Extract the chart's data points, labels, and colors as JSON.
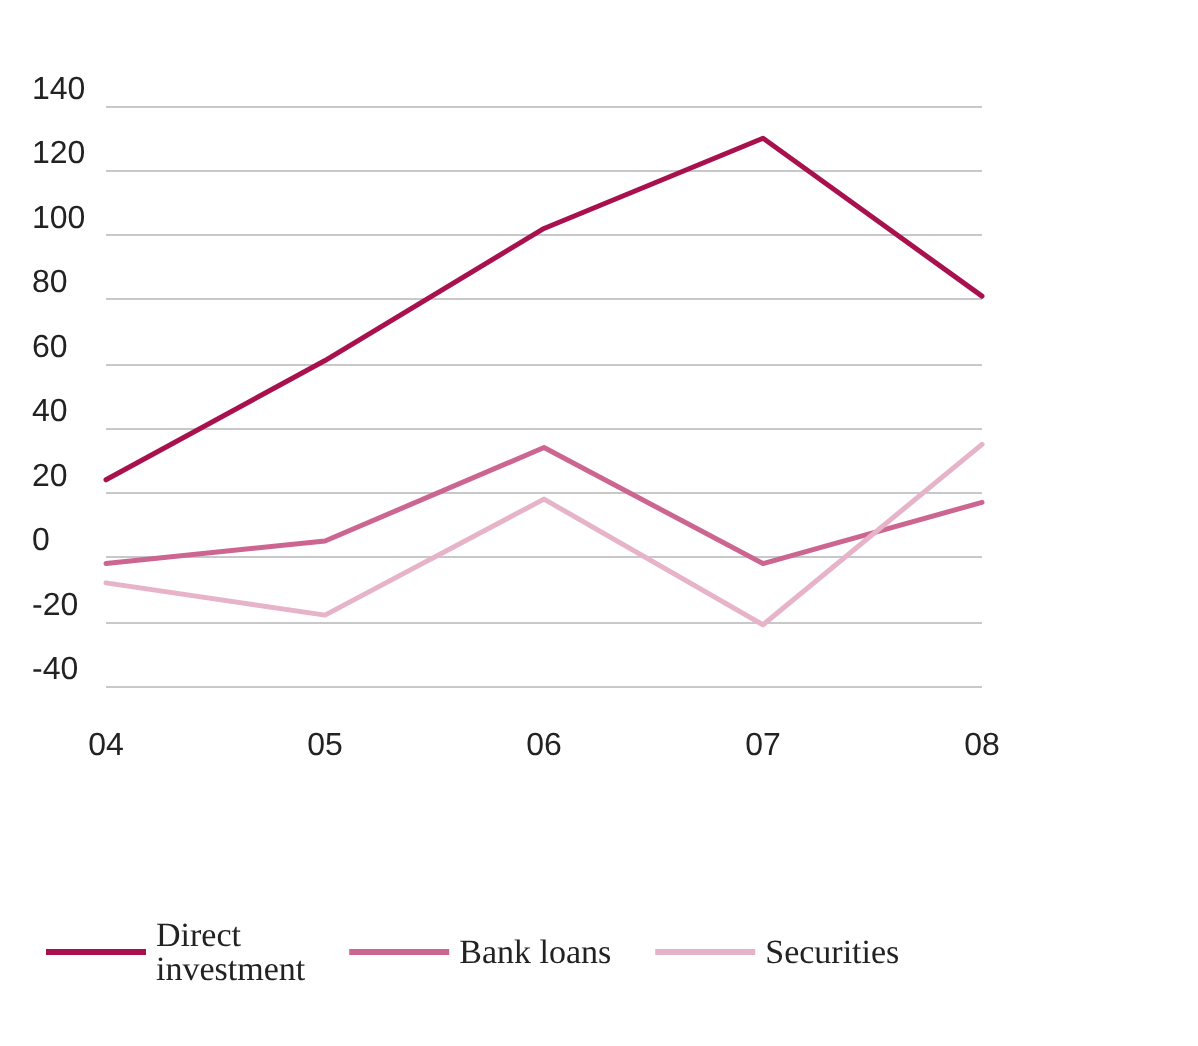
{
  "chart_data": {
    "type": "line",
    "categories": [
      "04",
      "05",
      "06",
      "07",
      "08"
    ],
    "series": [
      {
        "name": "Direct investment",
        "color": "#a8104e",
        "values": [
          24,
          61,
          102,
          130,
          81
        ]
      },
      {
        "name": "Bank loans",
        "color": "#cc6690",
        "values": [
          -2,
          5,
          34,
          -2,
          17
        ]
      },
      {
        "name": "Securities",
        "color": "#e6b3c8",
        "values": [
          -8,
          -18,
          18,
          -21,
          35
        ]
      }
    ],
    "ylim": [
      -40,
      140
    ],
    "yticks": [
      -40,
      -20,
      0,
      20,
      40,
      60,
      80,
      100,
      120,
      140
    ],
    "grid": "y",
    "legend": "bottom",
    "marker": "none",
    "line_style": "solid"
  }
}
